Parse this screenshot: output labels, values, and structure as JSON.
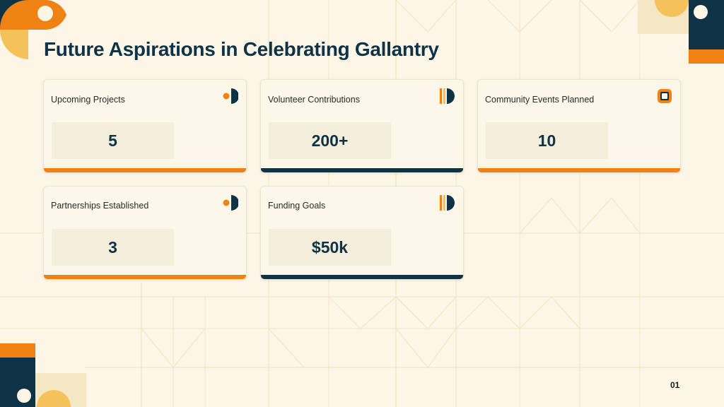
{
  "slide": {
    "title": "Future Aspirations in Celebrating Gallantry",
    "page_number": "01"
  },
  "colors": {
    "background": "#fdf6e6",
    "navy": "#0e3347",
    "orange": "#f08214",
    "gold": "#f5c15a",
    "cream": "#f6e7c4"
  },
  "cards": [
    {
      "label": "Upcoming Projects",
      "value": "5",
      "accent": "orange",
      "icon": "half-circle-dot-icon"
    },
    {
      "label": "Volunteer Contributions",
      "value": "200+",
      "accent": "navy",
      "icon": "bar-half-circle-icon"
    },
    {
      "label": "Community Events Planned",
      "value": "10",
      "accent": "orange",
      "icon": "rounded-square-ring-icon"
    },
    {
      "label": "Partnerships Established",
      "value": "3",
      "accent": "orange",
      "icon": "half-circle-dot-icon"
    },
    {
      "label": "Funding Goals",
      "value": "$50k",
      "accent": "navy",
      "icon": "bar-half-circle-icon"
    }
  ]
}
